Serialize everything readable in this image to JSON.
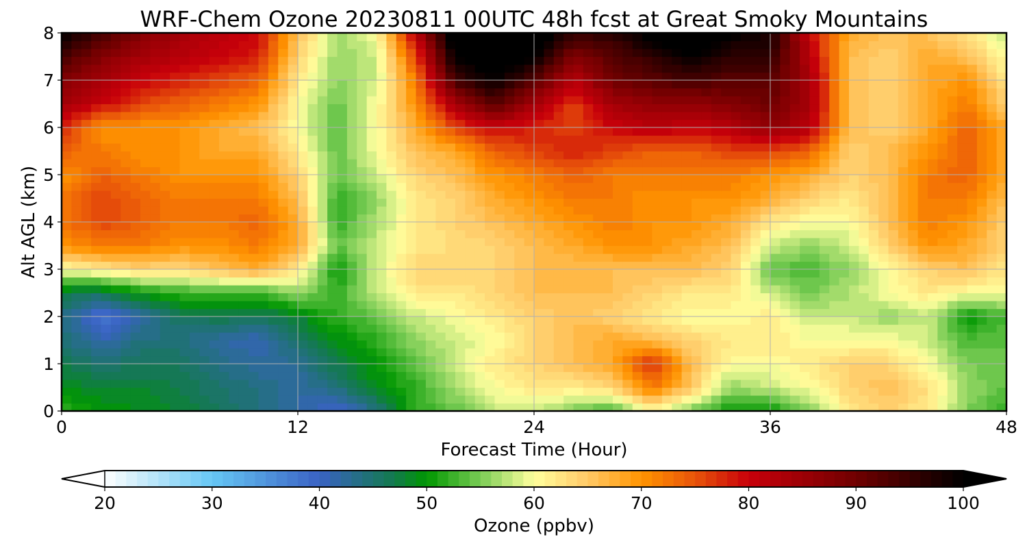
{
  "chart_data": {
    "type": "heatmap",
    "title": "WRF-Chem Ozone  20230811 00UTC 48h fcst at Great Smoky Mountains",
    "xlabel": "Forecast Time (Hour)",
    "ylabel": "Alt AGL (km)",
    "xlim": [
      0,
      48
    ],
    "ylim": [
      0,
      8
    ],
    "x_ticks": [
      "0",
      "12",
      "24",
      "36",
      "48"
    ],
    "y_ticks": [
      "0",
      "1",
      "2",
      "3",
      "4",
      "5",
      "6",
      "7",
      "8"
    ],
    "grid": true,
    "x": [
      0,
      2,
      4,
      6,
      8,
      10,
      12,
      14,
      16,
      18,
      20,
      22,
      24,
      26,
      28,
      30,
      32,
      34,
      36,
      38,
      40,
      42,
      44,
      46,
      48
    ],
    "y": [
      0,
      0.5,
      1,
      1.5,
      2,
      2.5,
      3,
      3.5,
      4,
      4.5,
      5,
      5.5,
      6,
      6.5,
      7,
      7.5,
      8
    ],
    "z": [
      [
        52,
        50,
        49,
        48,
        46,
        44,
        42,
        39,
        44,
        52,
        54,
        58,
        58,
        55,
        52,
        60,
        55,
        50,
        50,
        55,
        62,
        64,
        62,
        55,
        52
      ],
      [
        49,
        48,
        48,
        47,
        45,
        44,
        42,
        44,
        49,
        52,
        57,
        60,
        62,
        62,
        64,
        72,
        65,
        56,
        58,
        60,
        64,
        66,
        63,
        56,
        54
      ],
      [
        47,
        45,
        46,
        46,
        44,
        42,
        43,
        47,
        50,
        54,
        58,
        62,
        64,
        66,
        68,
        78,
        66,
        60,
        60,
        62,
        64,
        64,
        60,
        55,
        54
      ],
      [
        45,
        41,
        44,
        44,
        42,
        41,
        45,
        49,
        52,
        56,
        58,
        60,
        64,
        66,
        68,
        66,
        64,
        62,
        62,
        60,
        60,
        60,
        58,
        53,
        54
      ],
      [
        44,
        38,
        42,
        46,
        47,
        46,
        48,
        52,
        54,
        58,
        60,
        62,
        64,
        66,
        64,
        62,
        60,
        60,
        62,
        58,
        58,
        56,
        58,
        50,
        53
      ],
      [
        47,
        46,
        50,
        52,
        52,
        52,
        56,
        52,
        58,
        62,
        62,
        64,
        66,
        66,
        66,
        64,
        62,
        62,
        58,
        55,
        57,
        60,
        62,
        60,
        60
      ],
      [
        60,
        62,
        64,
        63,
        66,
        68,
        62,
        50,
        58,
        64,
        64,
        64,
        66,
        66,
        66,
        66,
        66,
        64,
        54,
        53,
        56,
        60,
        64,
        66,
        62
      ],
      [
        70,
        72,
        72,
        70,
        70,
        72,
        68,
        54,
        58,
        62,
        63,
        64,
        66,
        68,
        70,
        70,
        68,
        66,
        58,
        56,
        58,
        64,
        70,
        68,
        64
      ],
      [
        72,
        76,
        74,
        72,
        72,
        74,
        68,
        52,
        57,
        62,
        64,
        66,
        68,
        70,
        72,
        70,
        70,
        68,
        62,
        60,
        60,
        66,
        72,
        70,
        64
      ],
      [
        72,
        76,
        74,
        72,
        72,
        72,
        66,
        52,
        56,
        62,
        64,
        68,
        70,
        72,
        72,
        70,
        70,
        70,
        68,
        64,
        62,
        66,
        72,
        72,
        66
      ],
      [
        70,
        74,
        72,
        70,
        70,
        70,
        64,
        54,
        58,
        64,
        66,
        70,
        72,
        74,
        72,
        72,
        72,
        72,
        70,
        68,
        64,
        66,
        72,
        74,
        68
      ],
      [
        74,
        72,
        70,
        70,
        68,
        68,
        62,
        54,
        60,
        66,
        68,
        74,
        76,
        78,
        76,
        74,
        74,
        76,
        76,
        74,
        64,
        66,
        70,
        74,
        68
      ],
      [
        78,
        70,
        70,
        70,
        68,
        66,
        60,
        54,
        60,
        68,
        76,
        80,
        78,
        76,
        80,
        82,
        80,
        82,
        86,
        82,
        66,
        64,
        68,
        74,
        68
      ],
      [
        84,
        80,
        76,
        74,
        72,
        70,
        60,
        54,
        60,
        70,
        84,
        92,
        84,
        76,
        84,
        86,
        86,
        88,
        90,
        84,
        66,
        64,
        68,
        72,
        64
      ],
      [
        88,
        84,
        80,
        78,
        76,
        74,
        62,
        56,
        58,
        72,
        94,
        100,
        92,
        82,
        90,
        92,
        94,
        92,
        92,
        84,
        66,
        64,
        68,
        70,
        62
      ],
      [
        94,
        88,
        84,
        82,
        80,
        78,
        64,
        56,
        58,
        76,
        100,
        104,
        100,
        88,
        92,
        96,
        100,
        96,
        96,
        82,
        66,
        64,
        68,
        66,
        60
      ],
      [
        100,
        94,
        88,
        84,
        82,
        80,
        66,
        56,
        60,
        82,
        104,
        106,
        104,
        96,
        96,
        102,
        106,
        100,
        98,
        80,
        68,
        66,
        66,
        62,
        58
      ]
    ],
    "colorbar": {
      "label": "Ozone  (ppbv)",
      "min": 20,
      "max": 100,
      "ticks": [
        "20",
        "30",
        "40",
        "50",
        "60",
        "70",
        "80",
        "90",
        "100"
      ],
      "extend": "both",
      "levels": 80,
      "colormap": [
        [
          20,
          "#ffffff"
        ],
        [
          30,
          "#66c7f4"
        ],
        [
          40,
          "#3a62c4"
        ],
        [
          47,
          "#127a4c"
        ],
        [
          50,
          "#009700"
        ],
        [
          55,
          "#7acc55"
        ],
        [
          60,
          "#ffff9e"
        ],
        [
          65,
          "#ffc966"
        ],
        [
          70,
          "#ff9400"
        ],
        [
          75,
          "#e8540a"
        ],
        [
          80,
          "#c8000a"
        ],
        [
          90,
          "#700000"
        ],
        [
          100,
          "#000000"
        ]
      ]
    }
  }
}
